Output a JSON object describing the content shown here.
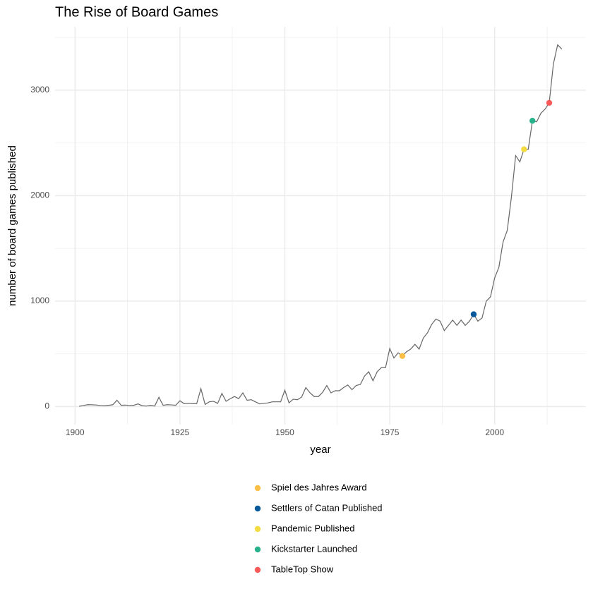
{
  "chart_data": {
    "type": "line",
    "title": "The Rise of Board Games",
    "xlabel": "year",
    "ylabel": "number of board games published",
    "x": [
      1901,
      1902,
      1903,
      1904,
      1905,
      1906,
      1907,
      1908,
      1909,
      1910,
      1911,
      1912,
      1913,
      1914,
      1915,
      1916,
      1917,
      1918,
      1919,
      1920,
      1921,
      1922,
      1923,
      1924,
      1925,
      1926,
      1927,
      1928,
      1929,
      1930,
      1931,
      1932,
      1933,
      1934,
      1935,
      1936,
      1937,
      1938,
      1939,
      1940,
      1941,
      1942,
      1943,
      1944,
      1945,
      1946,
      1947,
      1948,
      1949,
      1950,
      1951,
      1952,
      1953,
      1954,
      1955,
      1956,
      1957,
      1958,
      1959,
      1960,
      1961,
      1962,
      1963,
      1964,
      1965,
      1966,
      1967,
      1968,
      1969,
      1970,
      1971,
      1972,
      1973,
      1974,
      1975,
      1976,
      1977,
      1978,
      1979,
      1980,
      1981,
      1982,
      1983,
      1984,
      1985,
      1986,
      1987,
      1988,
      1989,
      1990,
      1991,
      1992,
      1993,
      1994,
      1995,
      1996,
      1997,
      1998,
      1999,
      2000,
      2001,
      2002,
      2003,
      2004,
      2005,
      2006,
      2007,
      2008,
      2009,
      2010,
      2011,
      2012,
      2013,
      2014,
      2015,
      2016
    ],
    "values": [
      3,
      10,
      18,
      17,
      15,
      10,
      7,
      12,
      17,
      60,
      12,
      14,
      10,
      12,
      25,
      8,
      5,
      12,
      5,
      88,
      12,
      18,
      16,
      12,
      55,
      28,
      30,
      28,
      28,
      170,
      20,
      45,
      50,
      30,
      125,
      50,
      75,
      95,
      75,
      130,
      60,
      65,
      45,
      25,
      30,
      35,
      45,
      45,
      45,
      155,
      35,
      70,
      65,
      90,
      180,
      130,
      95,
      95,
      135,
      200,
      130,
      150,
      150,
      180,
      205,
      160,
      200,
      210,
      290,
      330,
      245,
      330,
      370,
      370,
      550,
      460,
      510,
      480,
      520,
      545,
      590,
      545,
      650,
      700,
      780,
      830,
      810,
      720,
      770,
      820,
      770,
      820,
      770,
      810,
      875,
      810,
      840,
      1000,
      1040,
      1220,
      1320,
      1560,
      1670,
      1990,
      2380,
      2320,
      2440,
      2440,
      2710,
      2700,
      2780,
      2820,
      2880,
      3250,
      3430,
      3390
    ],
    "color": "#666666",
    "events": [
      {
        "name": "Spiel des Jahres Award",
        "x": 1978,
        "y": 480,
        "color": "#fbbf45"
      },
      {
        "name": "Settlers of Catan Published",
        "x": 1995,
        "y": 875,
        "color": "#07589a"
      },
      {
        "name": "Pandemic Published",
        "x": 2007,
        "y": 2440,
        "color": "#f3dc43"
      },
      {
        "name": "Kickstarter Launched",
        "x": 2009,
        "y": 2710,
        "color": "#27b28b"
      },
      {
        "name": "TableTop Show",
        "x": 2013,
        "y": 2880,
        "color": "#f85a5a"
      }
    ],
    "xlim": [
      1895.25,
      2021.75
    ],
    "ylim": [
      -171,
      3601
    ],
    "xticks": [
      1900,
      1925,
      1950,
      1975,
      2000
    ],
    "yticks": [
      0,
      1000,
      2000,
      3000
    ],
    "minor_xticks": [
      1912.5,
      1937.5,
      1962.5,
      1987.5,
      2012.5
    ],
    "minor_yticks": [
      500,
      1500,
      2500,
      3500
    ],
    "grid": true
  }
}
